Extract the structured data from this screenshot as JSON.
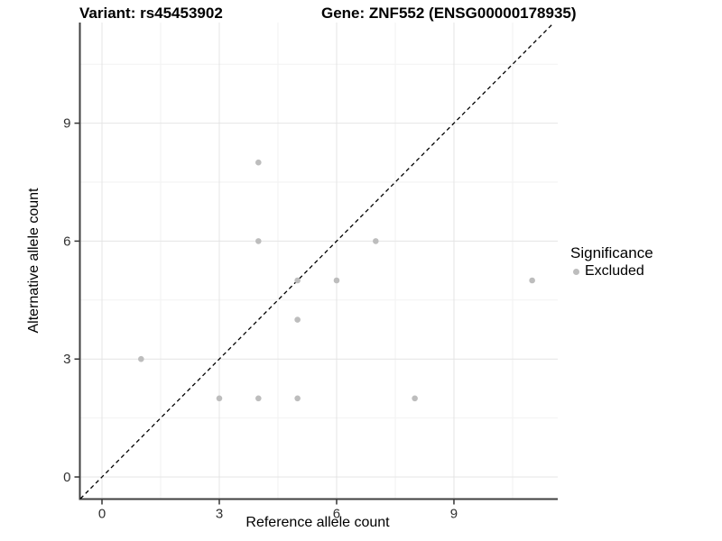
{
  "titles": {
    "variant": "Variant: rs45453902",
    "gene": "Gene: ZNF552 (ENSG00000178935)"
  },
  "legend": {
    "title": "Significance",
    "entries": [
      {
        "label": "Excluded",
        "color": "#bdbdbd"
      }
    ]
  },
  "colors": {
    "point": "#bdbdbd",
    "grid_major": "#e4e4e4",
    "grid_minor": "#f2f2f2",
    "axis_line": "#3f3f3f",
    "tick_mark": "#333333",
    "tick_text": "#303030",
    "identity_line": "#000000",
    "background": "#ffffff"
  },
  "chart_data": {
    "type": "scatter",
    "title": "Variant: rs45453902  |  Gene: ZNF552 (ENSG00000178935)",
    "xlabel": "Reference allele count",
    "ylabel": "Alternative allele count",
    "xticks": [
      0,
      3,
      6,
      9
    ],
    "yticks": [
      0,
      3,
      6,
      9
    ],
    "minor_gridlines_x": [
      1.5,
      4.5,
      7.5,
      10.5
    ],
    "minor_gridlines_y": [
      1.5,
      4.5,
      7.5,
      10.5
    ],
    "xlim": [
      -0.55,
      11.55
    ],
    "ylim": [
      -0.55,
      11.55
    ],
    "grid": true,
    "legend_position": "right",
    "identity_line": {
      "type": "dashed",
      "slope": 1,
      "intercept": 0
    },
    "series": [
      {
        "name": "Excluded",
        "color": "#bdbdbd",
        "points": [
          [
            1,
            3
          ],
          [
            3,
            2
          ],
          [
            4,
            2
          ],
          [
            5,
            2
          ],
          [
            8,
            2
          ],
          [
            5,
            4
          ],
          [
            5,
            5
          ],
          [
            6,
            5
          ],
          [
            11,
            5
          ],
          [
            4,
            6
          ],
          [
            7,
            6
          ],
          [
            4,
            8
          ]
        ]
      }
    ]
  }
}
